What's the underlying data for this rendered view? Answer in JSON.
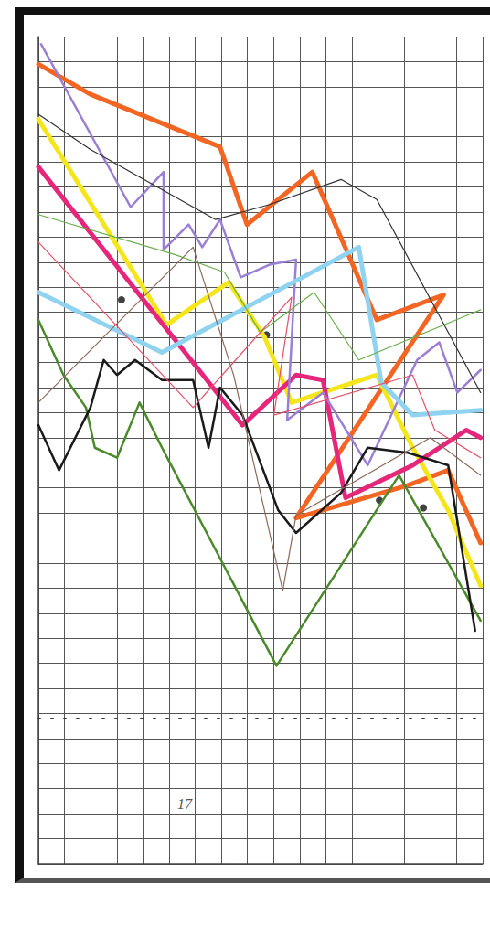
{
  "chart_data": {
    "type": "line",
    "xlim": [
      0,
      17
    ],
    "xticks": [
      0,
      1,
      2,
      3,
      4,
      5,
      6,
      7,
      8,
      9,
      10,
      11,
      12,
      13,
      14,
      15,
      16,
      17
    ],
    "ylim": [
      0,
      33
    ],
    "yticks": [
      0,
      1,
      2,
      3,
      4,
      5,
      6,
      7,
      8,
      9,
      10,
      11,
      12,
      13,
      14,
      15,
      16,
      17,
      18,
      19,
      20,
      21,
      22,
      23,
      24,
      25,
      26,
      27,
      28,
      29,
      30,
      31,
      32,
      33
    ],
    "grid": true,
    "tick_labels": false,
    "annotations": [
      {
        "text": "17",
        "x": 5.6,
        "y": 2.4
      }
    ],
    "series": [
      {
        "color": "#f26522",
        "line_style": "thick",
        "x": [
          0,
          1.99,
          6.95,
          7.98,
          10.48,
          12.95,
          15.51,
          9.86,
          14.14,
          15.68,
          16.92
        ],
        "values": [
          31.9,
          30.7,
          28.6,
          25.5,
          27.6,
          21.7,
          22.7,
          13.8,
          15.1,
          15.7,
          12.8
        ]
      },
      {
        "color": "#f5e61c",
        "line_style": "thick",
        "x": [
          0,
          4.9,
          7.29,
          8.66,
          9.69,
          12.95,
          14.32,
          15.68,
          16.92
        ],
        "values": [
          29.7,
          21.5,
          23.2,
          21.0,
          18.4,
          19.5,
          16.6,
          14.1,
          11.1
        ]
      },
      {
        "color": "#e6267a",
        "line_style": "thick",
        "x": [
          0,
          7.81,
          9.86,
          10.89,
          11.75,
          14.32,
          16.37,
          16.92
        ],
        "values": [
          27.8,
          17.5,
          19.5,
          19.3,
          14.6,
          15.9,
          17.3,
          17.0
        ]
      },
      {
        "color": "#9b7fd4",
        "line_style": "medium",
        "x": [
          0.1,
          3.53,
          4.79,
          4.79,
          5.75,
          6.27,
          6.95,
          7.74,
          8.84,
          9.86,
          9.52,
          10.89,
          12.6,
          14.49,
          15.34,
          16.03,
          16.92
        ],
        "values": [
          32.7,
          26.2,
          27.6,
          24.5,
          25.5,
          24.6,
          25.7,
          23.4,
          23.9,
          24.1,
          17.7,
          18.8,
          15.9,
          20.1,
          20.8,
          18.8,
          19.7
        ]
      },
      {
        "color": "#8fd3f0",
        "line_style": "thick",
        "x": [
          0,
          4.73,
          12.26,
          13.12,
          14.32,
          16.92
        ],
        "values": [
          22.8,
          20.4,
          24.6,
          19.2,
          17.9,
          18.1
        ]
      },
      {
        "color": "#4a8a2a",
        "line_style": "medium",
        "x": [
          0,
          0.96,
          1.82,
          2.16,
          3.01,
          3.87,
          4.73,
          9.11,
          13.8,
          16.92
        ],
        "values": [
          21.7,
          19.5,
          18.2,
          16.6,
          16.2,
          18.4,
          16.6,
          7.9,
          15.5,
          9.7
        ]
      },
      {
        "color": "#6ab04c",
        "line_style": "thin",
        "x": [
          0,
          5.24,
          7.12,
          8.49,
          10.55,
          12.26,
          16.92
        ],
        "values": [
          25.9,
          24.3,
          23.6,
          21.2,
          22.8,
          20.1,
          22.1
        ]
      },
      {
        "color": "#333333",
        "line_style": "thin",
        "x": [
          0,
          1.99,
          6.78,
          8.84,
          11.58,
          12.95,
          16.92
        ],
        "values": [
          29.9,
          28.5,
          25.7,
          26.3,
          27.3,
          26.5,
          18.8
        ]
      },
      {
        "color": "#1a1a1a",
        "line_style": "medium",
        "x": [
          0,
          0.79,
          1.99,
          2.5,
          3.01,
          3.7,
          4.73,
          5.92,
          6.51,
          6.95,
          7.81,
          9.18,
          9.86,
          11.58,
          12.6,
          14.14,
          15.68,
          16.71
        ],
        "values": [
          17.5,
          15.7,
          18.2,
          20.1,
          19.5,
          20.1,
          19.3,
          19.3,
          16.6,
          19.0,
          17.9,
          14.1,
          13.2,
          14.8,
          16.6,
          16.4,
          15.9,
          9.3
        ]
      },
      {
        "color": "#e8506a",
        "line_style": "thin",
        "x": [
          0,
          5.92,
          9.69,
          9.01,
          14.32,
          15.17,
          16.92
        ],
        "values": [
          24.8,
          18.2,
          22.6,
          17.9,
          19.5,
          17.3,
          16.2
        ]
      },
      {
        "color": "#8b6a5a",
        "line_style": "thin",
        "x": [
          0,
          5.92,
          7.47,
          9.35,
          9.86,
          15.0,
          16.92
        ],
        "values": [
          18.4,
          24.6,
          19.5,
          10.9,
          13.9,
          17.0,
          15.5
        ]
      },
      {
        "color": "#333333",
        "line_style": "dotted",
        "x": [
          0,
          16.92
        ],
        "values": [
          5.8,
          5.8
        ]
      },
      {
        "color": "#111111",
        "type": "scatter",
        "marker": "circle",
        "x": [
          3.18,
          8.73,
          13.05,
          14.73
        ],
        "values": [
          22.5,
          21.1,
          14.5,
          14.2
        ]
      }
    ]
  }
}
